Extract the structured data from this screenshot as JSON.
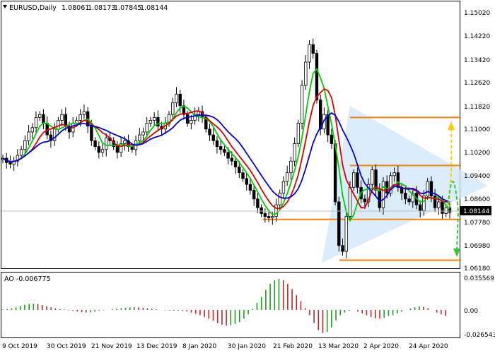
{
  "header": {
    "symbol": "EURUSD,Daily",
    "open": "1.08061",
    "high": "1.08173",
    "low": "1.07845",
    "close": "1.08144"
  },
  "price_axis": {
    "ticks": [
      "1.15020",
      "1.14220",
      "1.13420",
      "1.12620",
      "1.11820",
      "1.11000",
      "1.10200",
      "1.09400",
      "1.08600",
      "1.07780",
      "1.06980",
      "1.06180"
    ],
    "current_price": "1.08144"
  },
  "ao_panel": {
    "label": "AO -0.006775",
    "ticks": [
      "0.035569",
      "0.00",
      "-0.026543"
    ]
  },
  "time_axis": {
    "labels": [
      "9 Oct 2019",
      "30 Oct 2019",
      "21 Nov 2019",
      "13 Dec 2019",
      "8 Jan 2020",
      "30 Jan 2020",
      "21 Feb 2020",
      "13 Mar 2020",
      "2 Apr 2020",
      "24 Apr 2020"
    ]
  },
  "colors": {
    "candle": "#000000",
    "ma_fast": "#00cc00",
    "ma_mid": "#dd0000",
    "ma_slow": "#0000dd",
    "levels": "#ff7f00",
    "triangle": "#cfe6f8",
    "arrow_up": "#ffcc00",
    "arrow_down": "#33cc33",
    "ao_up": "#1aa01a",
    "ao_down": "#cc2222"
  },
  "chart_data": {
    "type": "candlestick",
    "instrument": "EURUSD",
    "timeframe": "Daily",
    "ylim": [
      1.0618,
      1.1542
    ],
    "levels": [
      1.114,
      1.0975,
      1.079,
      1.065
    ],
    "close_series": [
      1.1,
      1.0985,
      1.098,
      1.099,
      1.101,
      1.103,
      1.106,
      1.109,
      1.1105,
      1.114,
      1.115,
      1.112,
      1.108,
      1.106,
      1.11,
      1.113,
      1.115,
      1.111,
      1.109,
      1.112,
      1.113,
      1.115,
      1.116,
      1.111,
      1.106,
      1.104,
      1.102,
      1.103,
      1.107,
      1.106,
      1.104,
      1.102,
      1.105,
      1.106,
      1.104,
      1.103,
      1.106,
      1.108,
      1.109,
      1.112,
      1.113,
      1.114,
      1.111,
      1.11,
      1.112,
      1.115,
      1.119,
      1.122,
      1.118,
      1.115,
      1.112,
      1.113,
      1.115,
      1.116,
      1.114,
      1.11,
      1.108,
      1.106,
      1.104,
      1.103,
      1.102,
      1.1,
      1.099,
      1.097,
      1.095,
      1.093,
      1.091,
      1.089,
      1.086,
      1.083,
      1.081,
      1.08,
      1.0795,
      1.08,
      1.084,
      1.088,
      1.092,
      1.095,
      1.099,
      1.105,
      1.112,
      1.125,
      1.133,
      1.139,
      1.136,
      1.12,
      1.11,
      1.115,
      1.108,
      1.105,
      1.085,
      1.07,
      1.068,
      1.08,
      1.09,
      1.095,
      1.09,
      1.086,
      1.085,
      1.091,
      1.096,
      1.089,
      1.083,
      1.092,
      1.088,
      1.094,
      1.095,
      1.09,
      1.088,
      1.086,
      1.085,
      1.088,
      1.084,
      1.082,
      1.087,
      1.092,
      1.087,
      1.083,
      1.085,
      1.081,
      1.083,
      1.0814
    ],
    "ao_values": [
      0.0005,
      0.001,
      0.002,
      0.003,
      0.0045,
      0.006,
      0.007,
      0.0072,
      0.0068,
      0.0055,
      0.004,
      0.003,
      0.002,
      0.001,
      0.0005,
      -0.0005,
      -0.001,
      -0.0018,
      -0.0025,
      -0.003,
      -0.0028,
      -0.002,
      -0.001,
      -0.0005,
      0.0,
      0.0008,
      0.0015,
      0.002,
      0.0025,
      0.003,
      0.0032,
      0.003,
      0.0025,
      0.0018,
      0.0012,
      0.0006,
      0.0,
      -0.0004,
      -0.0006,
      -0.0008,
      -0.0008,
      -0.001,
      -0.0018,
      -0.003,
      -0.0045,
      -0.006,
      -0.008,
      -0.01,
      -0.0125,
      -0.015,
      -0.017,
      -0.018,
      -0.0175,
      -0.016,
      -0.014,
      -0.01,
      -0.005,
      0.001,
      0.008,
      0.015,
      0.023,
      0.03,
      0.034,
      0.0355,
      0.034,
      0.03,
      0.024,
      0.017,
      0.01,
      0.002,
      -0.006,
      -0.015,
      -0.023,
      -0.0265,
      -0.025,
      -0.02,
      -0.012,
      -0.006,
      -0.003,
      -0.001,
      0.0,
      -0.002,
      -0.004,
      -0.006,
      -0.008,
      -0.0095,
      -0.01,
      -0.009,
      -0.007,
      -0.006,
      -0.004,
      -0.002,
      0.0,
      0.0015,
      0.003,
      0.004,
      0.0035,
      0.002,
      0.0,
      -0.003,
      -0.005,
      -0.0068
    ]
  }
}
